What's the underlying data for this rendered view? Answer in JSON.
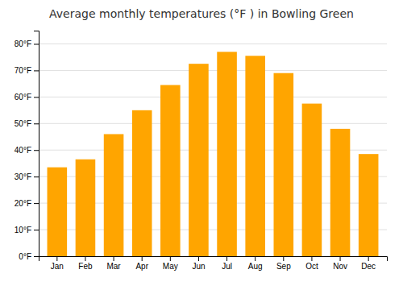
{
  "chart_data": {
    "type": "bar",
    "title": "Average monthly temperatures (°F ) in Bowling Green",
    "categories": [
      "Jan",
      "Feb",
      "Mar",
      "Apr",
      "May",
      "Jun",
      "Jul",
      "Aug",
      "Sep",
      "Oct",
      "Nov",
      "Dec"
    ],
    "values": [
      33.5,
      36.5,
      46.0,
      55.0,
      64.5,
      72.5,
      77.0,
      75.5,
      69.0,
      57.5,
      48.0,
      38.5
    ],
    "color": "#FFA500",
    "ylim": [
      0,
      85
    ],
    "yticks": [
      {
        "value": 0,
        "label": "0°F"
      },
      {
        "value": 10,
        "label": "10°F"
      },
      {
        "value": 20,
        "label": "20°F"
      },
      {
        "value": 30,
        "label": "30°F"
      },
      {
        "value": 40,
        "label": "40°F"
      },
      {
        "value": 50,
        "label": "50°F"
      },
      {
        "value": 60,
        "label": "60°F"
      },
      {
        "value": 70,
        "label": "70°F"
      },
      {
        "value": 80,
        "label": "80°F"
      }
    ],
    "grid": true
  }
}
